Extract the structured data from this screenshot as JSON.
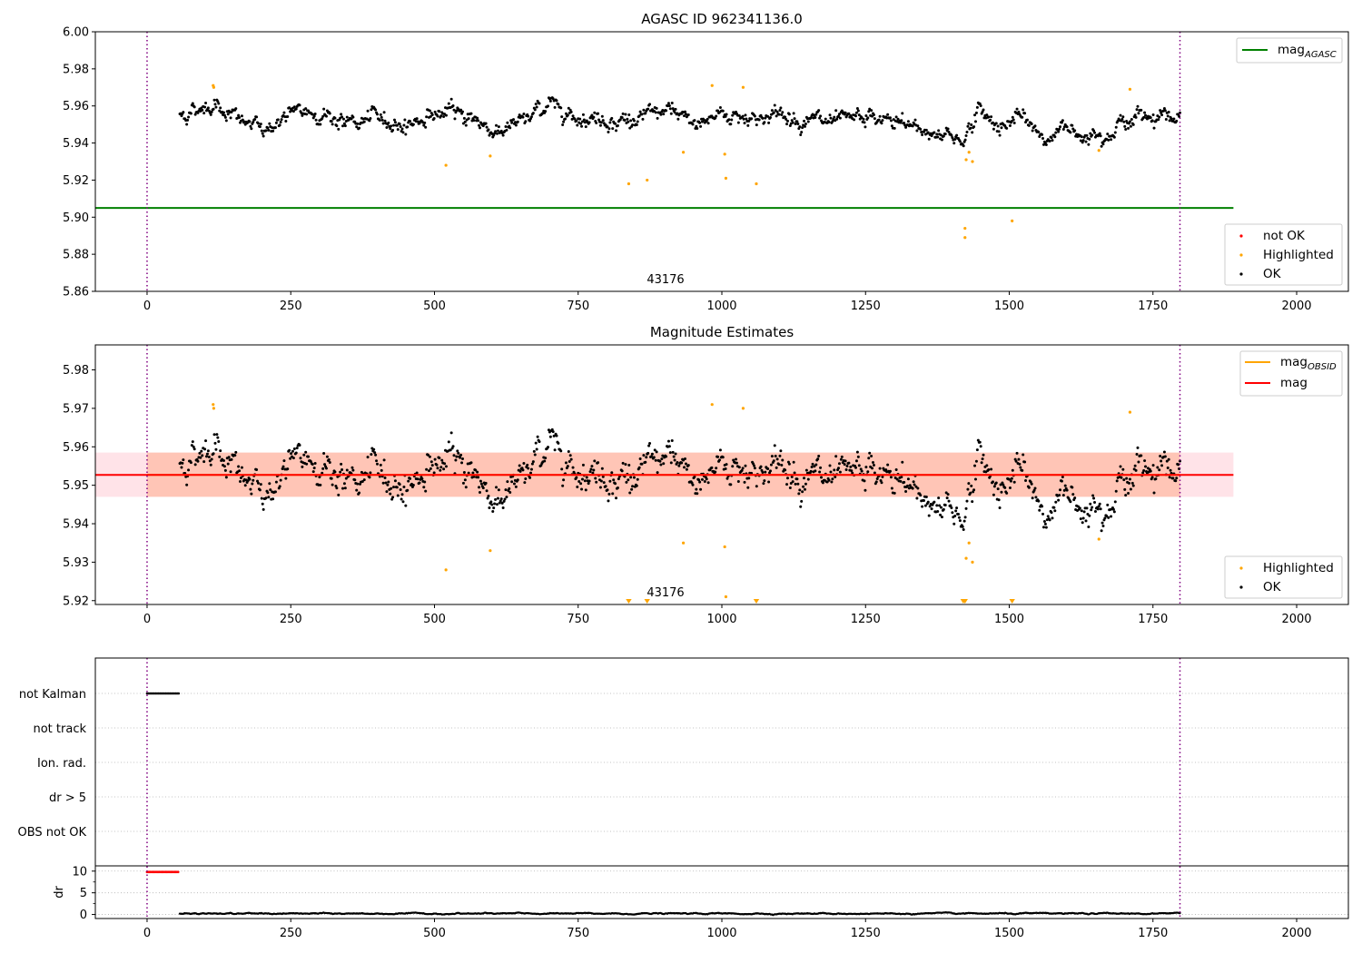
{
  "colors": {
    "ok": "#000000",
    "highlighted": "#ffa500",
    "not_ok": "#ff0000",
    "mag_agasc": "#008000",
    "mag_obsid": "#ffa500",
    "mag": "#ff0000",
    "obs_boundary": "#800080",
    "band_obsid": "#ffa07a",
    "band_mag": "#ffc0cb",
    "grid": "#b0b0b0"
  },
  "chart_data": [
    {
      "type": "scatter",
      "title": "AGASC ID 962341136.0",
      "xlim": [
        -90,
        2090
      ],
      "ylim": [
        5.86,
        6.0
      ],
      "xticks": [
        0,
        250,
        500,
        750,
        1000,
        1250,
        1500,
        1750,
        2000
      ],
      "yticks": [
        5.86,
        5.88,
        5.9,
        5.92,
        5.94,
        5.96,
        5.98,
        6.0
      ],
      "ytick_labels": [
        "5.86",
        "5.88",
        "5.90",
        "5.92",
        "5.94",
        "5.96",
        "5.98",
        "6.00"
      ],
      "obs_boundaries": [
        0,
        1797
      ],
      "obsid_label": {
        "text": "43176",
        "x": 898
      },
      "mag_agasc": {
        "value": 5.905,
        "x_range": [
          -90,
          1890
        ]
      },
      "ok_series": {
        "name": "OK",
        "x_range": [
          57,
          1797
        ],
        "baseline": [
          [
            57,
            5.955
          ],
          [
            120,
            5.962
          ],
          [
            160,
            5.952
          ],
          [
            200,
            5.947
          ],
          [
            250,
            5.955
          ],
          [
            300,
            5.957
          ],
          [
            350,
            5.95
          ],
          [
            400,
            5.953
          ],
          [
            450,
            5.95
          ],
          [
            500,
            5.956
          ],
          [
            560,
            5.955
          ],
          [
            600,
            5.947
          ],
          [
            650,
            5.95
          ],
          [
            700,
            5.962
          ],
          [
            750,
            5.955
          ],
          [
            800,
            5.953
          ],
          [
            850,
            5.952
          ],
          [
            900,
            5.957
          ],
          [
            950,
            5.95
          ],
          [
            1000,
            5.956
          ],
          [
            1050,
            5.954
          ],
          [
            1100,
            5.955
          ],
          [
            1150,
            5.953
          ],
          [
            1200,
            5.949
          ],
          [
            1250,
            5.953
          ],
          [
            1300,
            5.951
          ],
          [
            1350,
            5.947
          ],
          [
            1400,
            5.944
          ],
          [
            1420,
            5.942
          ],
          [
            1445,
            5.957
          ],
          [
            1480,
            5.95
          ],
          [
            1520,
            5.953
          ],
          [
            1560,
            5.943
          ],
          [
            1600,
            5.947
          ],
          [
            1650,
            5.946
          ],
          [
            1700,
            5.951
          ],
          [
            1750,
            5.956
          ],
          [
            1797,
            5.955
          ]
        ],
        "scatter": 0.0045
      },
      "highlighted_points": [
        [
          115,
          5.971
        ],
        [
          116,
          5.97
        ],
        [
          520,
          5.928
        ],
        [
          597,
          5.933
        ],
        [
          838,
          5.918
        ],
        [
          870,
          5.92
        ],
        [
          933,
          5.935
        ],
        [
          983,
          5.971
        ],
        [
          1005,
          5.934
        ],
        [
          1007,
          5.921
        ],
        [
          1037,
          5.97
        ],
        [
          1060,
          5.918
        ],
        [
          1423,
          5.894
        ],
        [
          1423,
          5.889
        ],
        [
          1425,
          5.931
        ],
        [
          1430,
          5.935
        ],
        [
          1436,
          5.93
        ],
        [
          1505,
          5.898
        ],
        [
          1656,
          5.936
        ],
        [
          1710,
          5.969
        ]
      ],
      "legend_upper": [
        {
          "key": "mag_agasc",
          "label": "mag",
          "sub": "AGASC"
        }
      ],
      "legend_lower": [
        {
          "key": "not_ok",
          "label": "not OK"
        },
        {
          "key": "highlighted",
          "label": "Highlighted"
        },
        {
          "key": "ok",
          "label": "OK"
        }
      ]
    },
    {
      "type": "scatter",
      "title": "Magnitude Estimates",
      "xlim": [
        -90,
        2090
      ],
      "ylim": [
        5.919,
        5.9865
      ],
      "xticks": [
        0,
        250,
        500,
        750,
        1000,
        1250,
        1500,
        1750,
        2000
      ],
      "yticks": [
        5.92,
        5.93,
        5.94,
        5.95,
        5.96,
        5.97,
        5.98
      ],
      "ytick_labels": [
        "5.92",
        "5.93",
        "5.94",
        "5.95",
        "5.96",
        "5.97",
        "5.98"
      ],
      "obs_boundaries": [
        0,
        1797
      ],
      "obsid_label": {
        "text": "43176",
        "x": 898
      },
      "mag": {
        "value": 5.9527,
        "band": [
          5.947,
          5.9585
        ],
        "x_range": [
          -90,
          1890
        ]
      },
      "mag_obsid": {
        "value": 5.9527,
        "band": [
          5.947,
          5.9585
        ],
        "x_range": [
          0,
          1797
        ]
      },
      "highlighted_points": [
        [
          115,
          5.971
        ],
        [
          116,
          5.97
        ],
        [
          520,
          5.928
        ],
        [
          597,
          5.933
        ],
        [
          933,
          5.935
        ],
        [
          983,
          5.971
        ],
        [
          1005,
          5.934
        ],
        [
          1007,
          5.921
        ],
        [
          1037,
          5.97
        ],
        [
          1425,
          5.931
        ],
        [
          1430,
          5.935
        ],
        [
          1436,
          5.93
        ],
        [
          1656,
          5.936
        ],
        [
          1710,
          5.969
        ]
      ],
      "below_range_markers": [
        838,
        870,
        1060,
        1420,
        1423,
        1505
      ],
      "legend_upper": [
        {
          "key": "mag_obsid",
          "label": "mag",
          "sub": "OBSID"
        },
        {
          "key": "mag",
          "label": "mag",
          "sub": ""
        }
      ],
      "legend_lower": [
        {
          "key": "highlighted",
          "label": "Highlighted"
        },
        {
          "key": "ok",
          "label": "OK"
        }
      ]
    },
    {
      "type": "scatter",
      "title": "",
      "xlim": [
        -90,
        2090
      ],
      "flag_labels": [
        "not Kalman",
        "not track",
        "Ion. rad.",
        "dr > 5",
        "OBS not OK"
      ],
      "obs_boundaries": [
        0,
        1797
      ],
      "not_kalman_x_range": [
        0,
        55
      ],
      "dr": {
        "ylabel": "dr",
        "yticks": [
          0,
          5,
          10
        ],
        "ylim": [
          -0.3,
          11
        ],
        "high_x_range": [
          0,
          55
        ],
        "high_value": 9.8,
        "low_x_range": [
          57,
          1797
        ],
        "low_value": 0.2
      },
      "xticks": [
        0,
        250,
        500,
        750,
        1000,
        1250,
        1500,
        1750,
        2000
      ]
    }
  ]
}
